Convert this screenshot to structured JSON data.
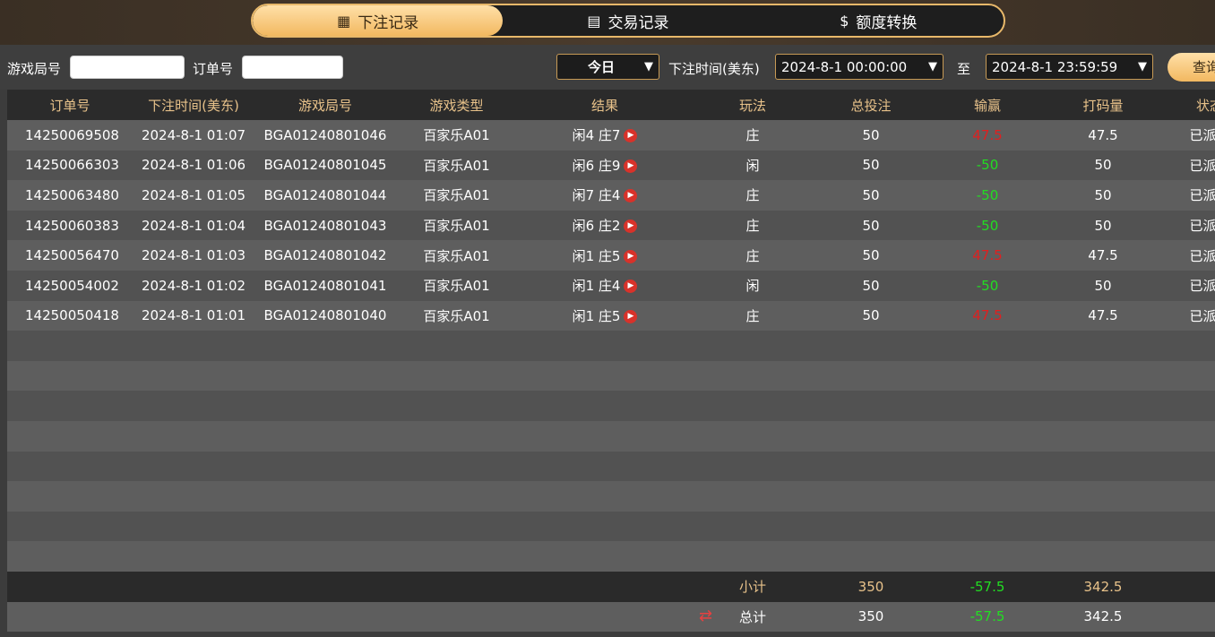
{
  "tabs": [
    {
      "label": "下注记录",
      "icon": "calendar-icon"
    },
    {
      "label": "交易记录",
      "icon": "clipboard-icon"
    },
    {
      "label": "额度转换",
      "icon": "coins-icon"
    }
  ],
  "filter": {
    "game_round_label": "游戏局号",
    "game_round_value": "",
    "order_label": "订单号",
    "order_value": "",
    "period": "今日",
    "time_label": "下注时间(美东)",
    "start": "2024-8-1 00:00:00",
    "to_label": "至",
    "end": "2024-8-1 23:59:59",
    "query": "查询"
  },
  "table": {
    "headers": [
      "订单号",
      "下注时间(美东)",
      "游戏局号",
      "游戏类型",
      "结果",
      "玩法",
      "总投注",
      "输赢",
      "打码量",
      "状态"
    ],
    "rows": [
      [
        "14250069508",
        "2024-8-1 01:07",
        "BGA01240801046",
        "百家乐A01",
        "闲4 庄7",
        "庄",
        "50",
        "47.5",
        "47.5",
        "已派彩"
      ],
      [
        "14250066303",
        "2024-8-1 01:06",
        "BGA01240801045",
        "百家乐A01",
        "闲6 庄9",
        "闲",
        "50",
        "-50",
        "50",
        "已派彩"
      ],
      [
        "14250063480",
        "2024-8-1 01:05",
        "BGA01240801044",
        "百家乐A01",
        "闲7 庄4",
        "庄",
        "50",
        "-50",
        "50",
        "已派彩"
      ],
      [
        "14250060383",
        "2024-8-1 01:04",
        "BGA01240801043",
        "百家乐A01",
        "闲6 庄2",
        "庄",
        "50",
        "-50",
        "50",
        "已派彩"
      ],
      [
        "14250056470",
        "2024-8-1 01:03",
        "BGA01240801042",
        "百家乐A01",
        "闲1 庄5",
        "庄",
        "50",
        "47.5",
        "47.5",
        "已派彩"
      ],
      [
        "14250054002",
        "2024-8-1 01:02",
        "BGA01240801041",
        "百家乐A01",
        "闲1 庄4",
        "闲",
        "50",
        "-50",
        "50",
        "已派彩"
      ],
      [
        "14250050418",
        "2024-8-1 01:01",
        "BGA01240801040",
        "百家乐A01",
        "闲1 庄5",
        "庄",
        "50",
        "47.5",
        "47.5",
        "已派彩"
      ]
    ],
    "subtotal": {
      "label": "小计",
      "bet": "350",
      "winloss": "-57.5",
      "turnover": "342.5"
    },
    "total": {
      "label": "总计",
      "bet": "350",
      "winloss": "-57.5",
      "turnover": "342.5"
    }
  },
  "colors": {
    "win": "#e02020",
    "loss": "#22dd22",
    "accent": "#e8c28a"
  }
}
